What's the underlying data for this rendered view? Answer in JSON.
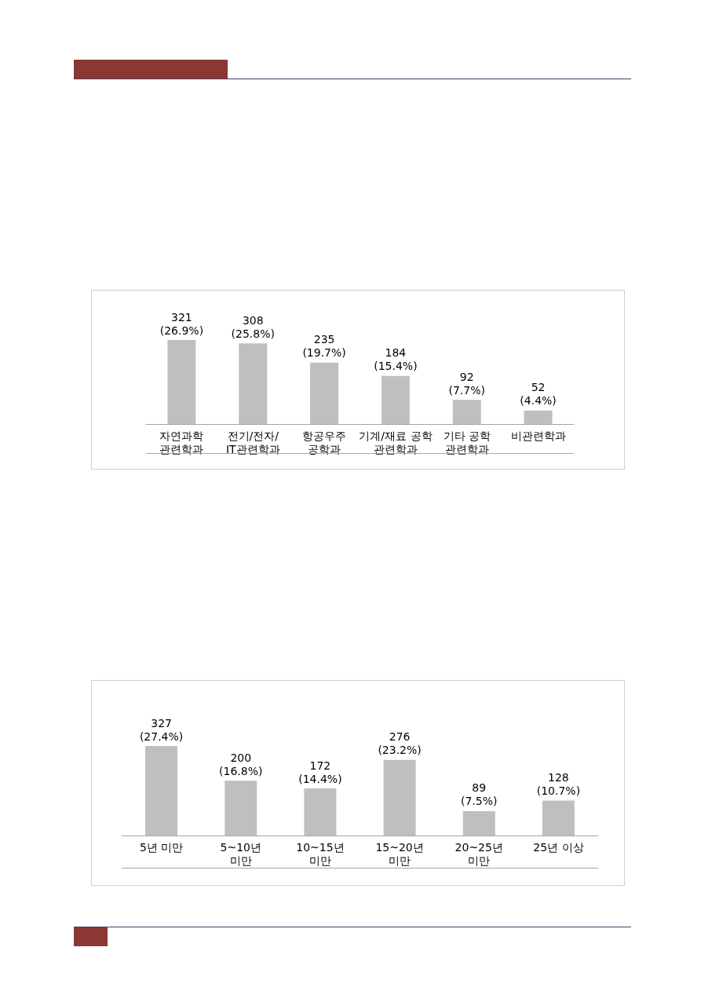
{
  "chart_data": [
    {
      "type": "bar",
      "categories": [
        "자연과학\n관련학과",
        "전기/전자/\nIT관련학과",
        "항공우주\n공학과",
        "기계/재료 공학\n관련학과",
        "기타 공학\n관련학과",
        "비관련학과"
      ],
      "values": [
        321,
        308,
        235,
        184,
        92,
        52
      ],
      "color": "#bfbfbf",
      "value_labels": [
        "321\n(26.9%)",
        "308\n(25.8%)",
        "235\n(19.7%)",
        "184\n(15.4%)",
        "92\n(7.7%)",
        "52\n(4.4%)"
      ]
    },
    {
      "type": "bar",
      "categories": [
        "5년 미만",
        "5~10년\n미만",
        "10~15년\n미만",
        "15~20년\n미만",
        "20~25년\n미만",
        "25년 이상"
      ],
      "values": [
        327,
        200,
        172,
        276,
        89,
        128
      ],
      "color": "#bfbfbf",
      "value_labels": [
        "327\n(27.4%)",
        "200\n(16.8%)",
        "172\n(14.4%)",
        "276\n(23.2%)",
        "89\n(7.5%)",
        "128\n(10.7%)"
      ]
    }
  ]
}
